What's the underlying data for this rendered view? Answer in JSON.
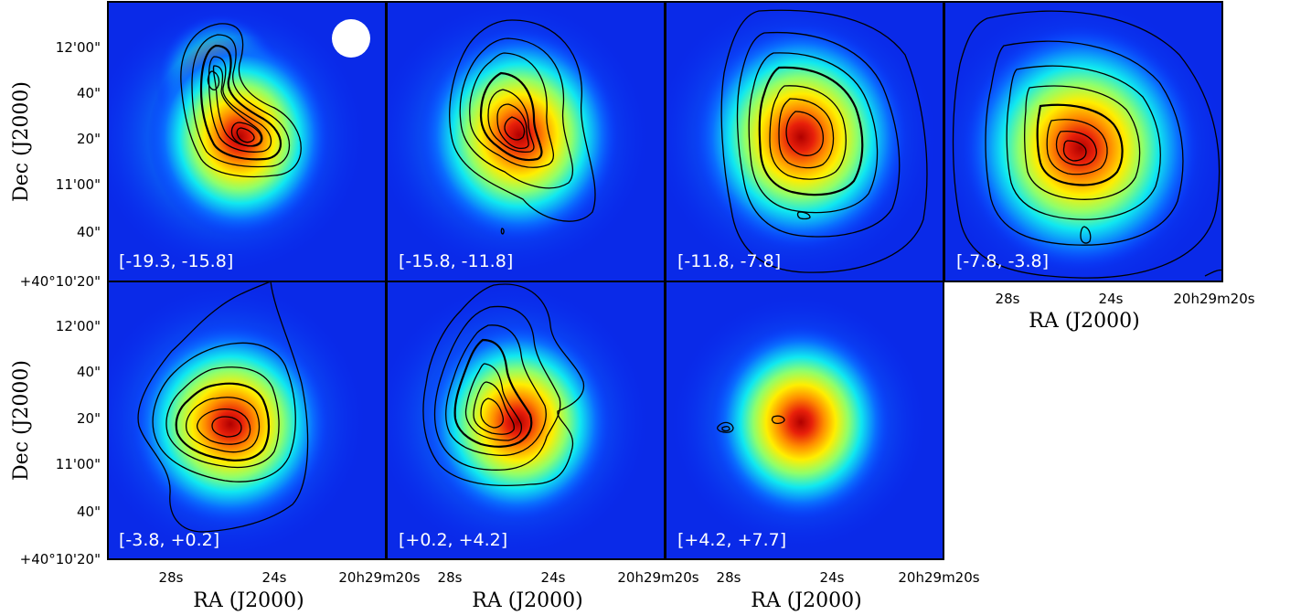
{
  "figure": {
    "y_axis_label": "Dec (J2000)",
    "x_axis_label": "RA (J2000)",
    "y_ticks": [
      "12'00\"",
      "40\"",
      "20\"",
      "11'00\"",
      "40\"",
      "+40°10'20\""
    ],
    "x_ticks": [
      "28s",
      "24s",
      "20h29m20s"
    ],
    "beam_marker": "beam-circle",
    "colormap": "jet",
    "colors": {
      "frame": "#000000",
      "label": "#ffffff",
      "contour": "#000000"
    },
    "panels": [
      {
        "label": "[-19.3, -15.8]"
      },
      {
        "label": "[-15.8, -11.8]"
      },
      {
        "label": "[-11.8, -7.8]"
      },
      {
        "label": "[-7.8, -3.8]"
      },
      {
        "label": "[-3.8, +0.2]"
      },
      {
        "label": "[+0.2, +4.2]"
      },
      {
        "label": "[+4.2, +7.7]"
      }
    ]
  }
}
